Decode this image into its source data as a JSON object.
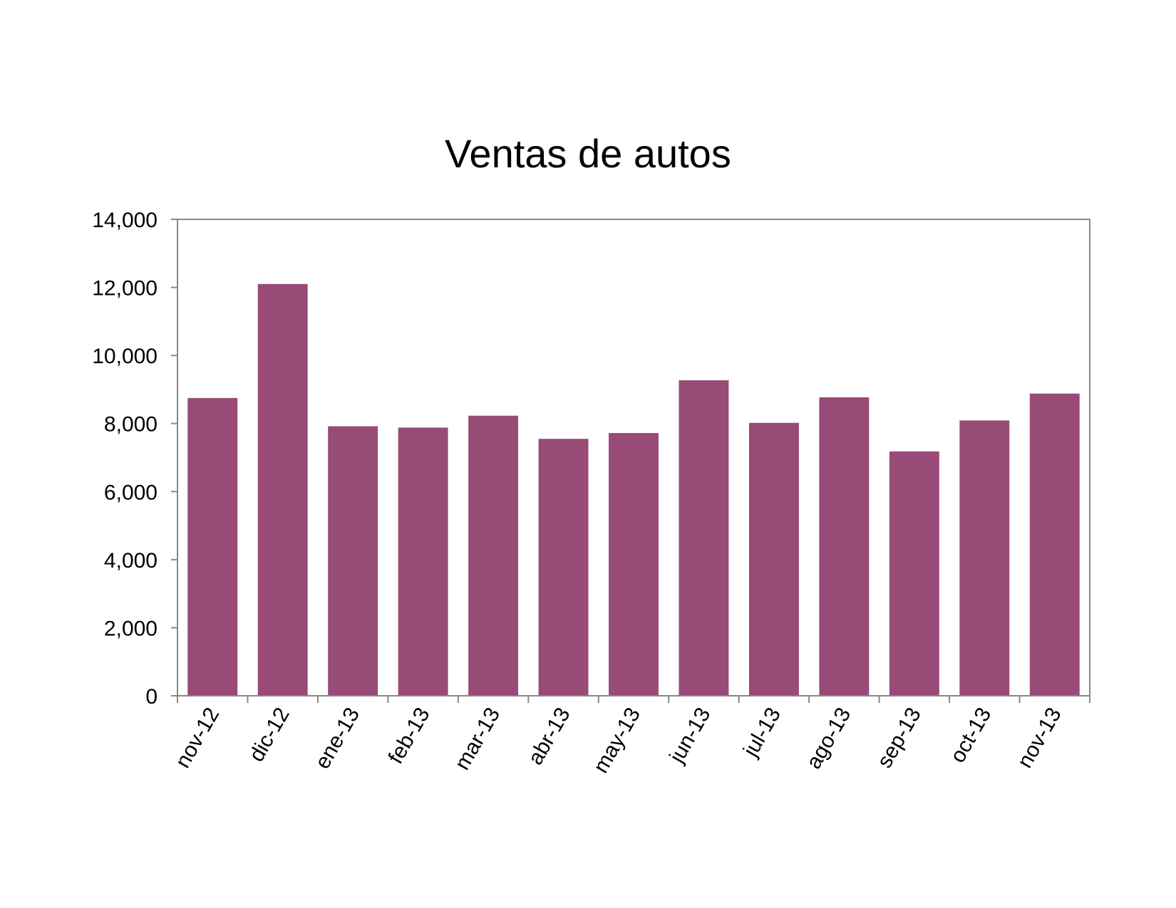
{
  "chart_data": {
    "type": "bar",
    "title": "Ventas de autos",
    "xlabel": "",
    "ylabel": "",
    "categories": [
      "nov-12",
      "dic-12",
      "ene-13",
      "feb-13",
      "mar-13",
      "abr-13",
      "may-13",
      "jun-13",
      "jul-13",
      "ago-13",
      "sep-13",
      "oct-13",
      "nov-13"
    ],
    "series": [
      {
        "values": [
          8750,
          12100,
          7920,
          7880,
          8230,
          7550,
          7720,
          9270,
          8020,
          8770,
          7180,
          8090,
          8880
        ],
        "color": "#974b76"
      }
    ],
    "ylim": [
      0,
      14000
    ],
    "yticks": [
      0,
      2000,
      4000,
      6000,
      8000,
      10000,
      12000,
      14000
    ],
    "ytick_labels": [
      "0",
      "2,000",
      "4,000",
      "6,000",
      "8,000",
      "10,000",
      "12,000",
      "14,000"
    ],
    "grid": false,
    "legend": "none"
  }
}
